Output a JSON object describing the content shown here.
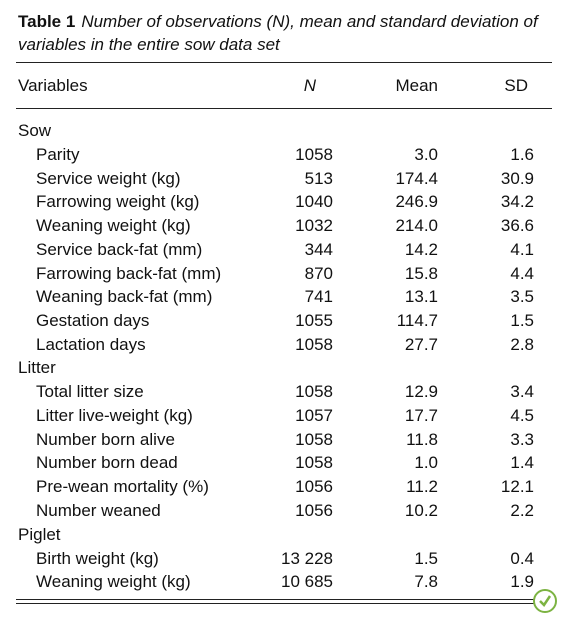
{
  "caption": {
    "label": "Table 1",
    "text": "Number of observations (N), mean and standard deviation of variables in the entire sow data set"
  },
  "table": {
    "header": [
      "Variables",
      "N",
      "Mean",
      "SD"
    ],
    "groups": [
      {
        "name": "Sow",
        "rows": [
          [
            "Parity",
            "1058",
            "3.0",
            "1.6"
          ],
          [
            "Service weight (kg)",
            "513",
            "174.4",
            "30.9"
          ],
          [
            "Farrowing weight (kg)",
            "1040",
            "246.9",
            "34.2"
          ],
          [
            "Weaning weight (kg)",
            "1032",
            "214.0",
            "36.6"
          ],
          [
            "Service back-fat (mm)",
            "344",
            "14.2",
            "4.1"
          ],
          [
            "Farrowing back-fat (mm)",
            "870",
            "15.8",
            "4.4"
          ],
          [
            "Weaning back-fat (mm)",
            "741",
            "13.1",
            "3.5"
          ],
          [
            "Gestation days",
            "1055",
            "114.7",
            "1.5"
          ],
          [
            "Lactation days",
            "1058",
            "27.7",
            "2.8"
          ]
        ]
      },
      {
        "name": "Litter",
        "rows": [
          [
            "Total litter size",
            "1058",
            "12.9",
            "3.4"
          ],
          [
            "Litter live-weight (kg)",
            "1057",
            "17.7",
            "4.5"
          ],
          [
            "Number born alive",
            "1058",
            "11.8",
            "3.3"
          ],
          [
            "Number born dead",
            "1058",
            "1.0",
            "1.4"
          ],
          [
            "Pre-wean mortality (%)",
            "1056",
            "11.2",
            "12.1"
          ],
          [
            "Number weaned",
            "1056",
            "10.2",
            "2.2"
          ]
        ]
      },
      {
        "name": "Piglet",
        "rows": [
          [
            "Birth weight (kg)",
            "13 228",
            "1.5",
            "0.4"
          ],
          [
            "Weaning weight (kg)",
            "10 685",
            "7.8",
            "1.9"
          ]
        ]
      }
    ]
  }
}
